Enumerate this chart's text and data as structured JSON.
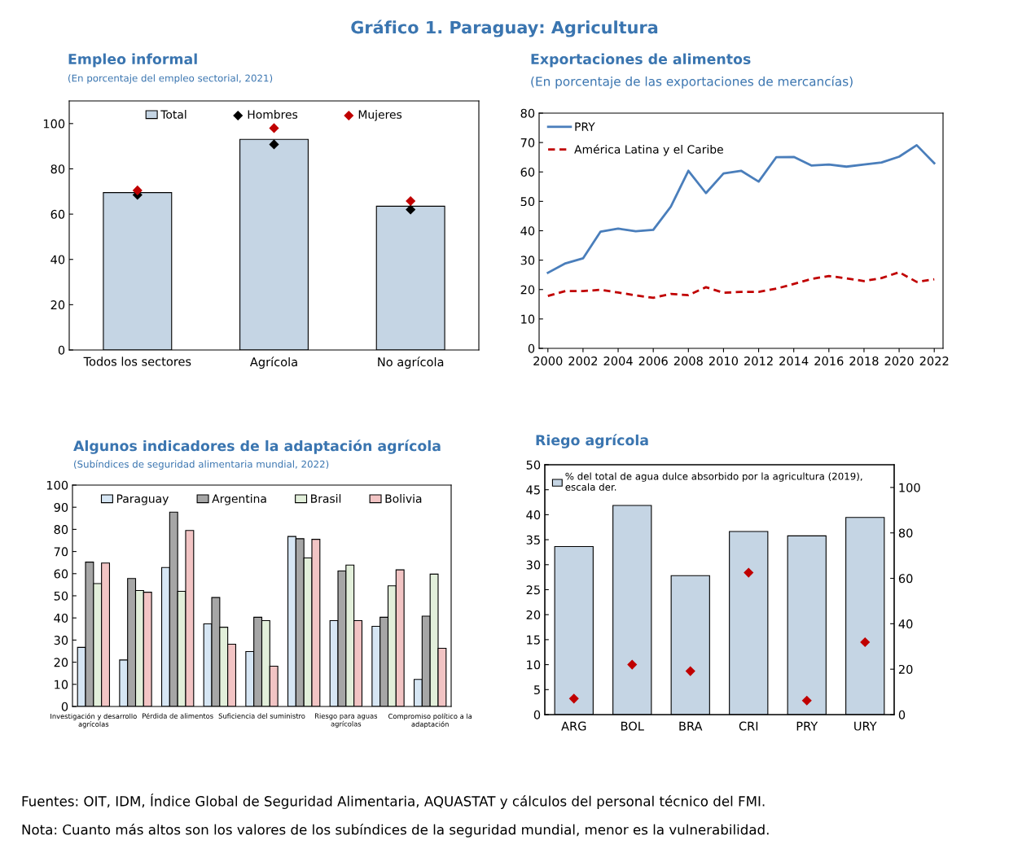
{
  "chart_data": [
    {
      "type": "other",
      "title": "Gráfico 1. Paraguay: Agricultura",
      "annotations": [
        "Fuentes: OIT, IDM, Índice Global de Seguridad Alimentaria, AQUASTAT y cálculos del personal técnico del FMI.",
        "Nota: Cuanto más altos son los valores de los subíndices de la seguridad mundial, menor es la vulnerabilidad."
      ]
    },
    {
      "type": "bar",
      "title": "Empleo informal",
      "subtitle": "(En porcentaje del empleo sectorial, 2021)",
      "categories": [
        "Todos los sectores",
        "Agrícola",
        "No agrícola"
      ],
      "series": [
        {
          "name": "Total",
          "type": "bar",
          "color": "#c5d5e4",
          "values": [
            69.5,
            93,
            63.5
          ]
        },
        {
          "name": "Hombres",
          "type": "scatter",
          "marker": "diamond",
          "color": "#000000",
          "values": [
            68.5,
            90.8,
            62
          ]
        },
        {
          "name": "Mujeres",
          "type": "scatter",
          "marker": "diamond",
          "color": "#c00000",
          "values": [
            70.5,
            98,
            65.8
          ]
        }
      ],
      "ylim": [
        0,
        110
      ],
      "yticks": [
        0,
        20,
        40,
        60,
        80,
        100
      ],
      "legend": "top"
    },
    {
      "type": "line",
      "title": "Exportaciones de alimentos",
      "subtitle": "(En porcentaje de las exportaciones de mercancías)",
      "x": [
        2000,
        2001,
        2002,
        2003,
        2004,
        2005,
        2006,
        2007,
        2008,
        2009,
        2010,
        2011,
        2012,
        2013,
        2014,
        2015,
        2016,
        2017,
        2018,
        2019,
        2020,
        2021,
        2022
      ],
      "series": [
        {
          "name": "PRY",
          "color": "#4a7ebb",
          "line_style": "solid",
          "values": [
            25.7,
            28.9,
            30.6,
            39.7,
            40.7,
            39.8,
            40.3,
            48.2,
            60.4,
            52.8,
            59.5,
            60.4,
            56.7,
            65.0,
            65.1,
            62.2,
            62.5,
            61.8,
            62.5,
            63.2,
            65.2,
            69.1,
            63.0
          ]
        },
        {
          "name": "América Latina y el Caribe",
          "color": "#c00000",
          "line_style": "dashed",
          "values": [
            17.8,
            19.5,
            19.5,
            19.9,
            19.0,
            18.0,
            17.2,
            18.5,
            18.1,
            20.8,
            18.9,
            19.2,
            19.2,
            20.3,
            21.9,
            23.6,
            24.6,
            23.8,
            22.9,
            23.9,
            25.9,
            22.6,
            23.5
          ]
        }
      ],
      "xlim": [
        1999.5,
        2022.5
      ],
      "xticks": [
        2000,
        2002,
        2004,
        2006,
        2008,
        2010,
        2012,
        2014,
        2016,
        2018,
        2020,
        2022
      ],
      "ylim": [
        0,
        80
      ],
      "yticks": [
        0,
        10,
        20,
        30,
        40,
        50,
        60,
        70,
        80
      ],
      "legend": "top left"
    },
    {
      "type": "bar",
      "title": "Algunos indicadores de la adaptación agrícola",
      "subtitle": "(Subíndices de seguridad alimentaria mundial, 2022)",
      "categories": [
        "Investigación y desarrollo\nagrícolas",
        null,
        "Pérdida de alimentos",
        null,
        "Suficiencia del suministro",
        null,
        "Riesgo para aguas\nagrícolas",
        null,
        "Compromiso político a la\nadaptación"
      ],
      "series": [
        {
          "name": "Paraguay",
          "color": "#d6e6f4",
          "values": [
            26.7,
            21.0,
            62.8,
            37.3,
            24.8,
            76.8,
            38.8,
            36.2,
            12.2
          ]
        },
        {
          "name": "Argentina",
          "color": "#a6a6a6",
          "values": [
            65.2,
            57.8,
            87.8,
            49.2,
            40.3,
            75.8,
            61.2,
            40.3,
            40.8
          ]
        },
        {
          "name": "Brasil",
          "color": "#e2efda",
          "values": [
            55.5,
            52.4,
            52.0,
            35.8,
            38.8,
            67.1,
            63.9,
            54.5,
            59.8
          ]
        },
        {
          "name": "Bolivia",
          "color": "#f2c4c4",
          "values": [
            64.8,
            51.6,
            79.5,
            28.1,
            18.2,
            75.5,
            38.8,
            61.7,
            26.3
          ]
        }
      ],
      "ylim": [
        0,
        100
      ],
      "yticks": [
        0,
        10,
        20,
        30,
        40,
        50,
        60,
        70,
        80,
        90,
        100
      ],
      "legend": "top"
    },
    {
      "type": "bar",
      "title": "Riego agrícola",
      "categories": [
        "ARG",
        "BOL",
        "BRA",
        "CRI",
        "PRY",
        "URY"
      ],
      "series": [
        {
          "name": "% del total de agua dulce absorbido por la agricultura (2019),\nescala der.",
          "type": "bar",
          "axis": "y2",
          "color": "#c5d5e4",
          "values": [
            74.0,
            92.1,
            61.2,
            80.6,
            78.7,
            86.8
          ]
        },
        {
          "type": "scatter",
          "marker": "diamond",
          "color": "#c00000",
          "values": [
            3.2,
            10.0,
            8.7,
            28.4,
            2.8,
            14.5
          ]
        }
      ],
      "ylim": [
        0,
        50
      ],
      "yticks": [
        0,
        5,
        10,
        15,
        20,
        25,
        30,
        35,
        40,
        45,
        50
      ],
      "y2lim": [
        0,
        110
      ],
      "y2ticks": [
        0,
        20,
        40,
        60,
        80,
        100
      ],
      "legend": "top left"
    }
  ]
}
